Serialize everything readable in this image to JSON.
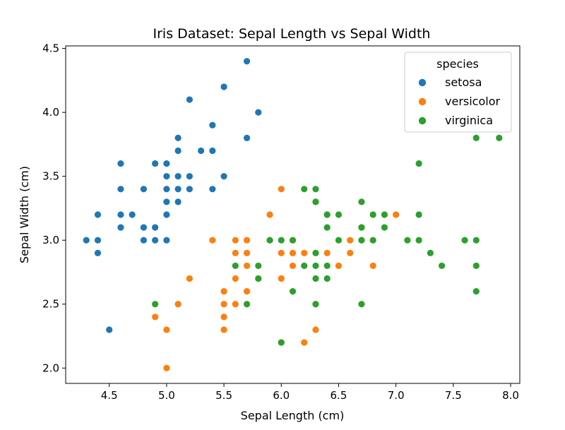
{
  "chart_data": {
    "type": "scatter",
    "title": "Iris Dataset: Sepal Length vs Sepal Width",
    "xlabel": "Sepal Length (cm)",
    "ylabel": "Sepal Width (cm)",
    "xlim": [
      4.12,
      8.08
    ],
    "ylim": [
      1.88,
      4.52
    ],
    "xticks": [
      4.5,
      5.0,
      5.5,
      6.0,
      6.5,
      7.0,
      7.5,
      8.0
    ],
    "xtick_labels": [
      "4.5",
      "5.0",
      "5.5",
      "6.0",
      "6.5",
      "7.0",
      "7.5",
      "8.0"
    ],
    "yticks": [
      2.0,
      2.5,
      3.0,
      3.5,
      4.0,
      4.5
    ],
    "ytick_labels": [
      "2.0",
      "2.5",
      "3.0",
      "3.5",
      "4.0",
      "4.5"
    ],
    "grid": false,
    "legend": {
      "title": "species",
      "placement": "top-right"
    },
    "series": [
      {
        "name": "setosa",
        "color": "#1f77b4",
        "points": [
          [
            4.3,
            3.0
          ],
          [
            4.4,
            3.2
          ],
          [
            4.4,
            3.0
          ],
          [
            4.4,
            2.9
          ],
          [
            4.5,
            2.3
          ],
          [
            4.6,
            3.6
          ],
          [
            4.6,
            3.4
          ],
          [
            4.6,
            3.2
          ],
          [
            4.6,
            3.1
          ],
          [
            4.7,
            3.2
          ],
          [
            4.8,
            3.4
          ],
          [
            4.8,
            3.1
          ],
          [
            4.8,
            3.0
          ],
          [
            4.9,
            3.6
          ],
          [
            4.9,
            3.1
          ],
          [
            4.9,
            3.0
          ],
          [
            5.0,
            3.6
          ],
          [
            5.0,
            3.5
          ],
          [
            5.0,
            3.4
          ],
          [
            5.0,
            3.3
          ],
          [
            5.0,
            3.2
          ],
          [
            5.0,
            3.0
          ],
          [
            5.1,
            3.8
          ],
          [
            5.1,
            3.7
          ],
          [
            5.1,
            3.5
          ],
          [
            5.1,
            3.4
          ],
          [
            5.1,
            3.3
          ],
          [
            5.2,
            4.1
          ],
          [
            5.2,
            3.5
          ],
          [
            5.2,
            3.4
          ],
          [
            5.3,
            3.7
          ],
          [
            5.4,
            3.9
          ],
          [
            5.4,
            3.7
          ],
          [
            5.4,
            3.4
          ],
          [
            5.5,
            4.2
          ],
          [
            5.5,
            3.5
          ],
          [
            5.7,
            4.4
          ],
          [
            5.7,
            3.8
          ],
          [
            5.8,
            4.0
          ]
        ]
      },
      {
        "name": "versicolor",
        "color": "#ff7f0e",
        "points": [
          [
            4.9,
            2.4
          ],
          [
            5.0,
            2.3
          ],
          [
            5.0,
            2.0
          ],
          [
            5.1,
            2.5
          ],
          [
            5.2,
            2.7
          ],
          [
            5.4,
            3.0
          ],
          [
            5.5,
            2.6
          ],
          [
            5.5,
            2.5
          ],
          [
            5.5,
            2.4
          ],
          [
            5.5,
            2.3
          ],
          [
            5.6,
            3.0
          ],
          [
            5.6,
            2.9
          ],
          [
            5.6,
            2.7
          ],
          [
            5.6,
            2.5
          ],
          [
            5.7,
            3.0
          ],
          [
            5.7,
            2.9
          ],
          [
            5.7,
            2.8
          ],
          [
            5.7,
            2.6
          ],
          [
            5.8,
            2.7
          ],
          [
            5.9,
            3.2
          ],
          [
            5.9,
            3.0
          ],
          [
            6.0,
            3.4
          ],
          [
            6.0,
            2.9
          ],
          [
            6.0,
            2.7
          ],
          [
            6.0,
            2.2
          ],
          [
            6.1,
            3.0
          ],
          [
            6.1,
            2.9
          ],
          [
            6.1,
            2.8
          ],
          [
            6.2,
            2.9
          ],
          [
            6.2,
            2.2
          ],
          [
            6.3,
            3.3
          ],
          [
            6.3,
            2.5
          ],
          [
            6.3,
            2.3
          ],
          [
            6.4,
            3.2
          ],
          [
            6.4,
            2.9
          ],
          [
            6.5,
            2.8
          ],
          [
            6.6,
            3.0
          ],
          [
            6.6,
            2.9
          ],
          [
            6.7,
            3.1
          ],
          [
            6.7,
            3.0
          ],
          [
            6.8,
            2.8
          ],
          [
            7.0,
            3.2
          ]
        ]
      },
      {
        "name": "virginica",
        "color": "#2ca02c",
        "points": [
          [
            4.9,
            2.5
          ],
          [
            5.6,
            2.8
          ],
          [
            5.7,
            2.5
          ],
          [
            5.8,
            2.8
          ],
          [
            5.8,
            2.7
          ],
          [
            5.9,
            3.0
          ],
          [
            6.0,
            3.0
          ],
          [
            6.0,
            2.2
          ],
          [
            6.1,
            3.0
          ],
          [
            6.1,
            2.6
          ],
          [
            6.2,
            3.4
          ],
          [
            6.2,
            2.8
          ],
          [
            6.3,
            3.4
          ],
          [
            6.3,
            3.3
          ],
          [
            6.3,
            2.9
          ],
          [
            6.3,
            2.8
          ],
          [
            6.3,
            2.7
          ],
          [
            6.3,
            2.5
          ],
          [
            6.4,
            3.2
          ],
          [
            6.4,
            3.1
          ],
          [
            6.4,
            2.8
          ],
          [
            6.4,
            2.7
          ],
          [
            6.5,
            3.2
          ],
          [
            6.5,
            3.0
          ],
          [
            6.7,
            3.3
          ],
          [
            6.7,
            3.1
          ],
          [
            6.7,
            3.0
          ],
          [
            6.7,
            2.5
          ],
          [
            6.8,
            3.2
          ],
          [
            6.8,
            3.0
          ],
          [
            6.9,
            3.2
          ],
          [
            6.9,
            3.1
          ],
          [
            7.1,
            3.0
          ],
          [
            7.2,
            3.6
          ],
          [
            7.2,
            3.2
          ],
          [
            7.2,
            3.0
          ],
          [
            7.3,
            2.9
          ],
          [
            7.4,
            2.8
          ],
          [
            7.6,
            3.0
          ],
          [
            7.7,
            3.8
          ],
          [
            7.7,
            3.0
          ],
          [
            7.7,
            2.8
          ],
          [
            7.7,
            2.6
          ],
          [
            7.9,
            3.8
          ]
        ]
      }
    ]
  }
}
